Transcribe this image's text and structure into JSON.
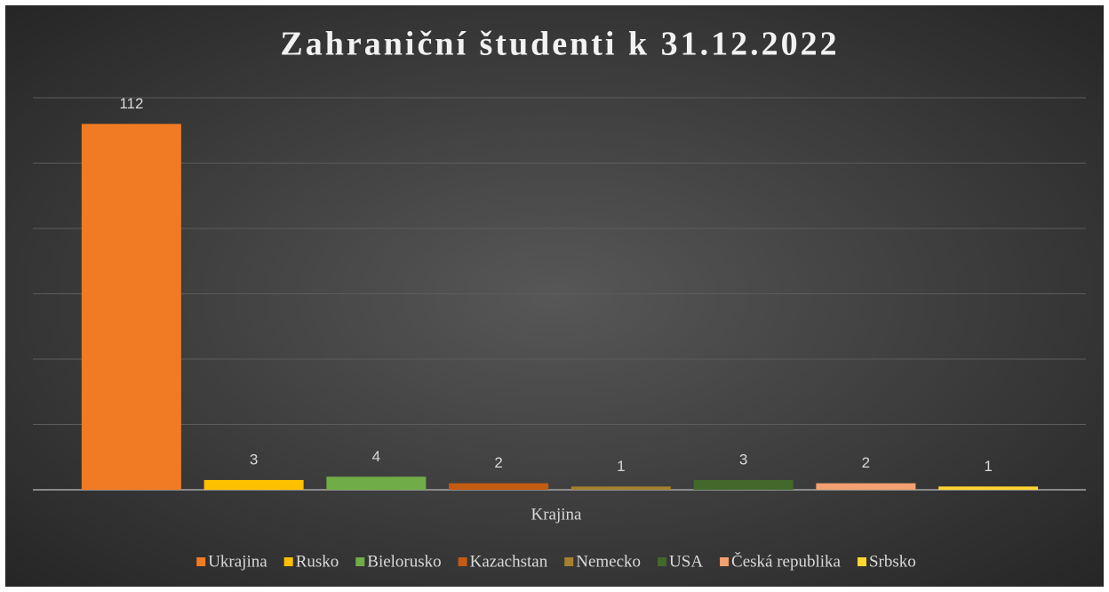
{
  "chart_data": {
    "type": "bar",
    "title": "Zahraniční študenti k 31.12.2022",
    "x_label": "Krajina",
    "series": [
      {
        "name": "Ukrajina",
        "color": "#f07b24",
        "values": [
          112
        ]
      },
      {
        "name": "Rusko",
        "color": "#ffc000",
        "values": [
          3
        ]
      },
      {
        "name": "Bielorusko",
        "color": "#70ad47",
        "values": [
          4
        ]
      },
      {
        "name": "Kazachstan",
        "color": "#c55a11",
        "values": [
          2
        ]
      },
      {
        "name": "Nemecko",
        "color": "#a5812f",
        "values": [
          1
        ]
      },
      {
        "name": "USA",
        "color": "#43682b",
        "values": [
          3
        ]
      },
      {
        "name": "Česká republika",
        "color": "#f4a070",
        "values": [
          2
        ]
      },
      {
        "name": "Srbsko",
        "color": "#ffd52f",
        "values": [
          1
        ]
      }
    ],
    "ylim": [
      0,
      120
    ],
    "yticks": [
      0,
      20,
      40,
      60,
      80,
      100,
      120
    ],
    "grid": true,
    "legend": "bottom"
  }
}
